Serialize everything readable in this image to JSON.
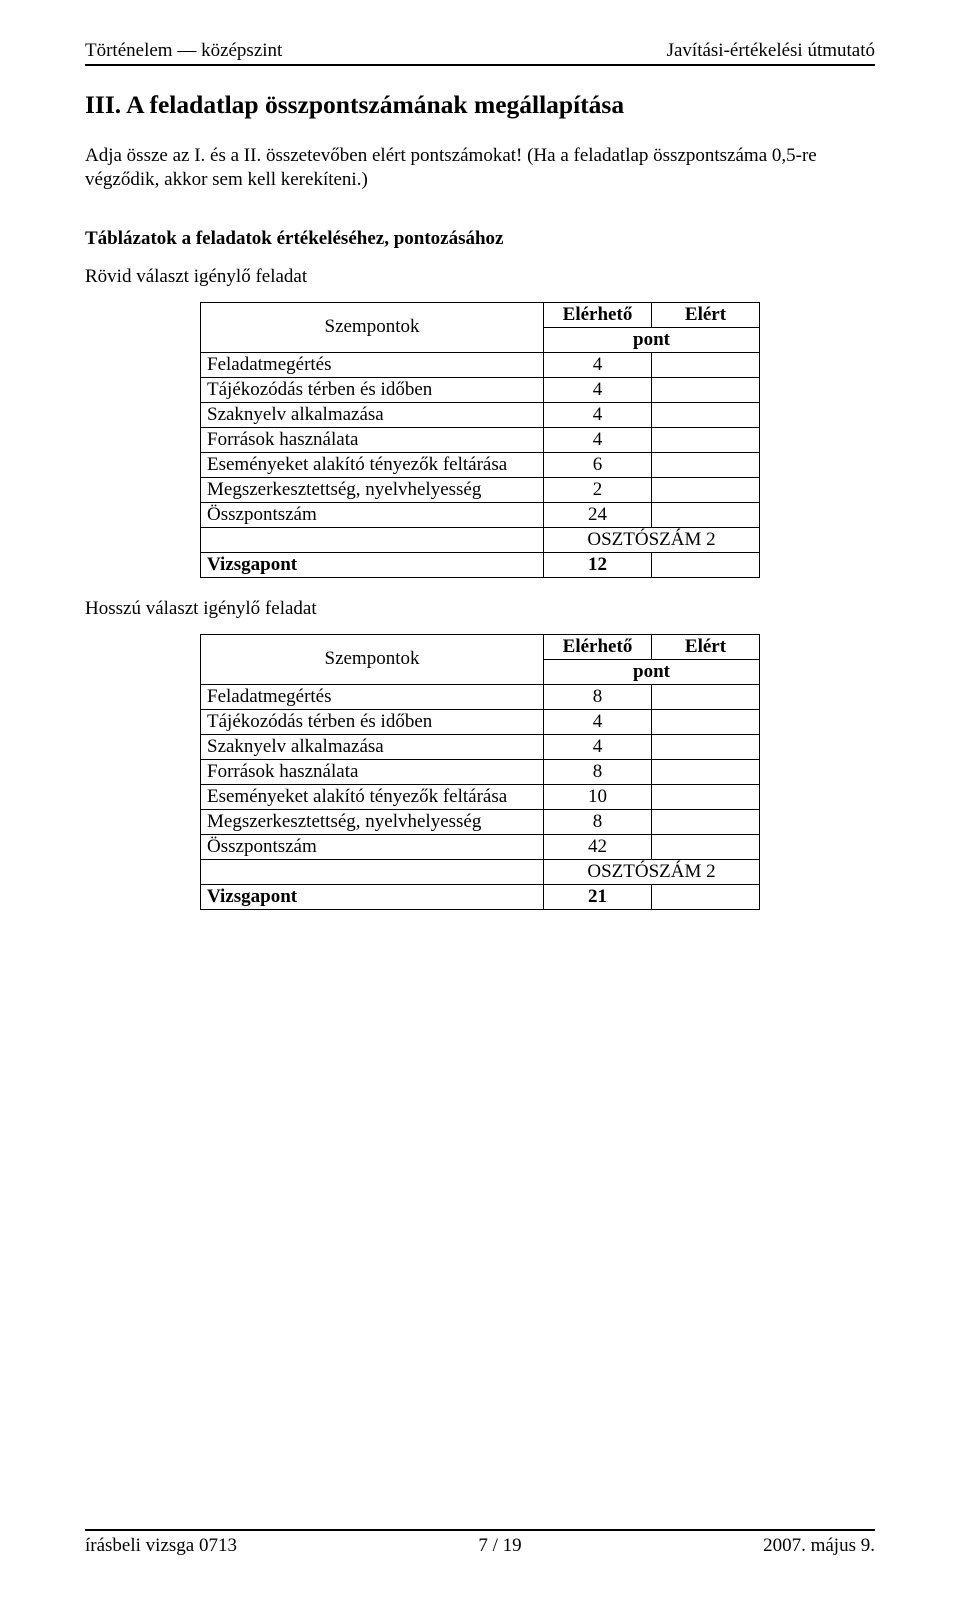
{
  "header": {
    "left": "Történelem — középszint",
    "right": "Javítási-értékelési útmutató"
  },
  "section_title": "III. A feladatlap összpontszámának megállapítása",
  "intro_paragraph": "Adja össze az I. és a II. összetevőben elért pontszámokat! (Ha a feladatlap összpontszáma 0,5-re végződik, akkor sem kell kerekíteni.)",
  "tables_heading": "Táblázatok a feladatok értékeléséhez, pontozásához",
  "short_answer_heading": "Rövid választ igénylő feladat",
  "long_answer_heading": "Hosszú választ igénylő feladat",
  "score_table_short": {
    "headers": {
      "szempontok": "Szempontok",
      "elerheto": "Elérhető",
      "elert": "Elért",
      "pont": "pont"
    },
    "rows": [
      {
        "label": "Feladatmegértés",
        "value": "4"
      },
      {
        "label": "Tájékozódás térben és időben",
        "value": "4"
      },
      {
        "label": "Szaknyelv alkalmazása",
        "value": "4"
      },
      {
        "label": "Források használata",
        "value": "4"
      },
      {
        "label": "Eseményeket alakító tényezők feltárása",
        "value": "6"
      },
      {
        "label": "Megszerkesztettség, nyelvhelyesség",
        "value": "2"
      }
    ],
    "total_label": "Összpontszám",
    "total_value": "24",
    "divisor_label": "OSZTÓSZÁM 2",
    "exam_label": "Vizsgapont",
    "exam_value": "12"
  },
  "score_table_long": {
    "headers": {
      "szempontok": "Szempontok",
      "elerheto": "Elérhető",
      "elert": "Elért",
      "pont": "pont"
    },
    "rows": [
      {
        "label": "Feladatmegértés",
        "value": "8"
      },
      {
        "label": "Tájékozódás térben és időben",
        "value": "4"
      },
      {
        "label": "Szaknyelv alkalmazása",
        "value": "4"
      },
      {
        "label": "Források használata",
        "value": "8"
      },
      {
        "label": "Eseményeket alakító tényezők feltárása",
        "value": "10"
      },
      {
        "label": "Megszerkesztettség, nyelvhelyesség",
        "value": "8"
      }
    ],
    "total_label": "Összpontszám",
    "total_value": "42",
    "divisor_label": "OSZTÓSZÁM 2",
    "exam_label": "Vizsgapont",
    "exam_value": "21"
  },
  "footer": {
    "left": "írásbeli vizsga 0713",
    "center": "7 / 19",
    "right": "2007. május 9."
  }
}
